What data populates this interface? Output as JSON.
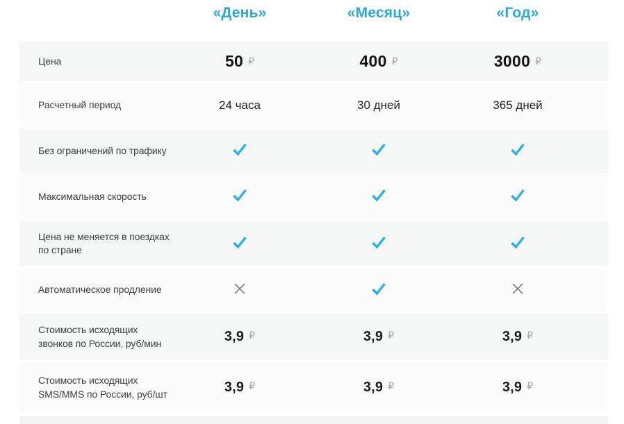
{
  "columns": [
    {
      "id": "day",
      "label": "«День»"
    },
    {
      "id": "month",
      "label": "«Месяц»"
    },
    {
      "id": "year",
      "label": "«Год»"
    }
  ],
  "currency": "₽",
  "colors": {
    "accent": "#27a9e0",
    "check": "#2bb0e7",
    "cross": "#6e6e6e",
    "ruble": "#a8a8a8",
    "row_gray": "#f5f6f6",
    "row_light": "#fbfbfb"
  },
  "rows": [
    {
      "label": "Цена",
      "type": "price",
      "values": [
        "50",
        "400",
        "3000"
      ]
    },
    {
      "label": "Расчетный период",
      "type": "text",
      "values": [
        "24 часа",
        "30 дней",
        "365 дней"
      ]
    },
    {
      "label": "Без ограничений по трафику",
      "type": "bool",
      "values": [
        "check",
        "check",
        "check"
      ]
    },
    {
      "label": "Максимальная скорость",
      "type": "bool",
      "values": [
        "check",
        "check",
        "check"
      ]
    },
    {
      "label": "Цена не меняется в поездках по стране",
      "type": "bool",
      "values": [
        "check",
        "check",
        "check"
      ]
    },
    {
      "label": "Автоматическое продление",
      "type": "bool",
      "values": [
        "cross",
        "check",
        "cross"
      ]
    },
    {
      "label": "Стоимость исходящих звонков по России, руб/мин",
      "type": "price_small",
      "values": [
        "3,9",
        "3,9",
        "3,9"
      ]
    },
    {
      "label": "Стоимость исходящих SMS/MMS по России, руб/шт",
      "type": "price_small",
      "values": [
        "3,9",
        "3,9",
        "3,9"
      ]
    }
  ]
}
